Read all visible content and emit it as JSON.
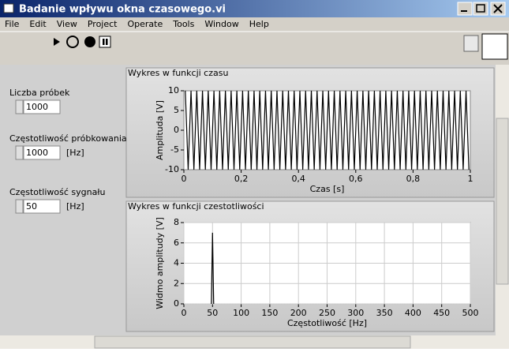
{
  "window": {
    "title": "Badanie wpływu okna czasowego.vi"
  },
  "menu": [
    "File",
    "Edit",
    "View",
    "Project",
    "Operate",
    "Tools",
    "Window",
    "Help"
  ],
  "controls": [
    {
      "label": "Liczba próbek",
      "value": "1000"
    },
    {
      "label": "Częstotliwość próbkowania",
      "value": "1000",
      "unit": "[Hz]"
    },
    {
      "label": "Częstotliwość sygnału",
      "value": "50",
      "unit": "[Hz]"
    }
  ],
  "charts": [
    {
      "type": "line",
      "title": "Wykres w funkcji czasu",
      "xlabel": "Czas [s]",
      "ylabel": "Amplituda [V]",
      "xlim": [
        0,
        1
      ],
      "xticks": [
        0,
        {
          "value": 0.2,
          "label": "0,2"
        },
        {
          "value": 0.4,
          "label": "0,4"
        },
        {
          "value": 0.6,
          "label": "0,6"
        },
        {
          "value": 0.8,
          "label": "0,8"
        },
        1
      ],
      "ylim": [
        -10,
        10
      ],
      "yticks": [
        -10,
        -5,
        0,
        5,
        10
      ],
      "grid": false,
      "color": "#000000",
      "x": [
        0.005,
        0.015,
        0.025,
        0.035,
        0.045,
        0.055,
        0.065,
        0.075,
        0.085,
        0.095,
        0.105,
        0.115,
        0.125,
        0.135,
        0.145,
        0.155,
        0.165,
        0.175,
        0.185,
        0.195,
        0.205,
        0.215,
        0.225,
        0.235,
        0.245,
        0.255,
        0.265,
        0.275,
        0.285,
        0.295,
        0.305,
        0.315,
        0.325,
        0.335,
        0.345,
        0.355,
        0.365,
        0.375,
        0.385,
        0.395,
        0.405,
        0.415,
        0.425,
        0.435,
        0.445,
        0.455,
        0.465,
        0.475,
        0.485,
        0.495,
        0.505,
        0.515,
        0.525,
        0.535,
        0.545,
        0.555,
        0.565,
        0.575,
        0.585,
        0.595,
        0.605,
        0.615,
        0.625,
        0.635,
        0.645,
        0.655,
        0.665,
        0.675,
        0.685,
        0.695,
        0.705,
        0.715,
        0.725,
        0.735,
        0.745,
        0.755,
        0.765,
        0.775,
        0.785,
        0.795,
        0.805,
        0.815,
        0.825,
        0.835,
        0.845,
        0.855,
        0.865,
        0.875,
        0.885,
        0.895,
        0.905,
        0.915,
        0.925,
        0.935,
        0.945,
        0.955,
        0.965,
        0.975,
        0.985,
        0.995
      ],
      "values": [
        10,
        -10,
        10,
        -10,
        10,
        -10,
        10,
        -10,
        10,
        -10,
        10,
        -10,
        10,
        -10,
        10,
        -10,
        10,
        -10,
        10,
        -10,
        10,
        -10,
        10,
        -10,
        10,
        -10,
        10,
        -10,
        10,
        -10,
        10,
        -10,
        10,
        -10,
        10,
        -10,
        10,
        -10,
        10,
        -10,
        10,
        -10,
        10,
        -10,
        10,
        -10,
        10,
        -10,
        10,
        -10,
        10,
        -10,
        10,
        -10,
        10,
        -10,
        10,
        -10,
        10,
        -10,
        10,
        -10,
        10,
        -10,
        10,
        -10,
        10,
        -10,
        10,
        -10,
        10,
        -10,
        10,
        -10,
        10,
        -10,
        10,
        -10,
        10,
        -10,
        10,
        -10,
        10,
        -10,
        10,
        -10,
        10,
        -10,
        10,
        -10,
        10,
        -10,
        10,
        -10,
        10,
        -10,
        10,
        -10,
        10,
        -10
      ]
    },
    {
      "type": "line",
      "title": "Wykres w funkcji czestotliwości",
      "xlabel": "Częstotliwość [Hz]",
      "ylabel": "Widmo amplitudy [V]",
      "xlim": [
        0,
        500
      ],
      "xticks": [
        0,
        50,
        100,
        150,
        200,
        250,
        300,
        350,
        400,
        450,
        500
      ],
      "ylim": [
        0,
        8
      ],
      "yticks": [
        0,
        2,
        4,
        6,
        8
      ],
      "grid": true,
      "color": "#000000",
      "x": [
        48,
        49,
        50,
        51,
        52
      ],
      "values": [
        0,
        3.5,
        7,
        3.5,
        0
      ]
    }
  ]
}
